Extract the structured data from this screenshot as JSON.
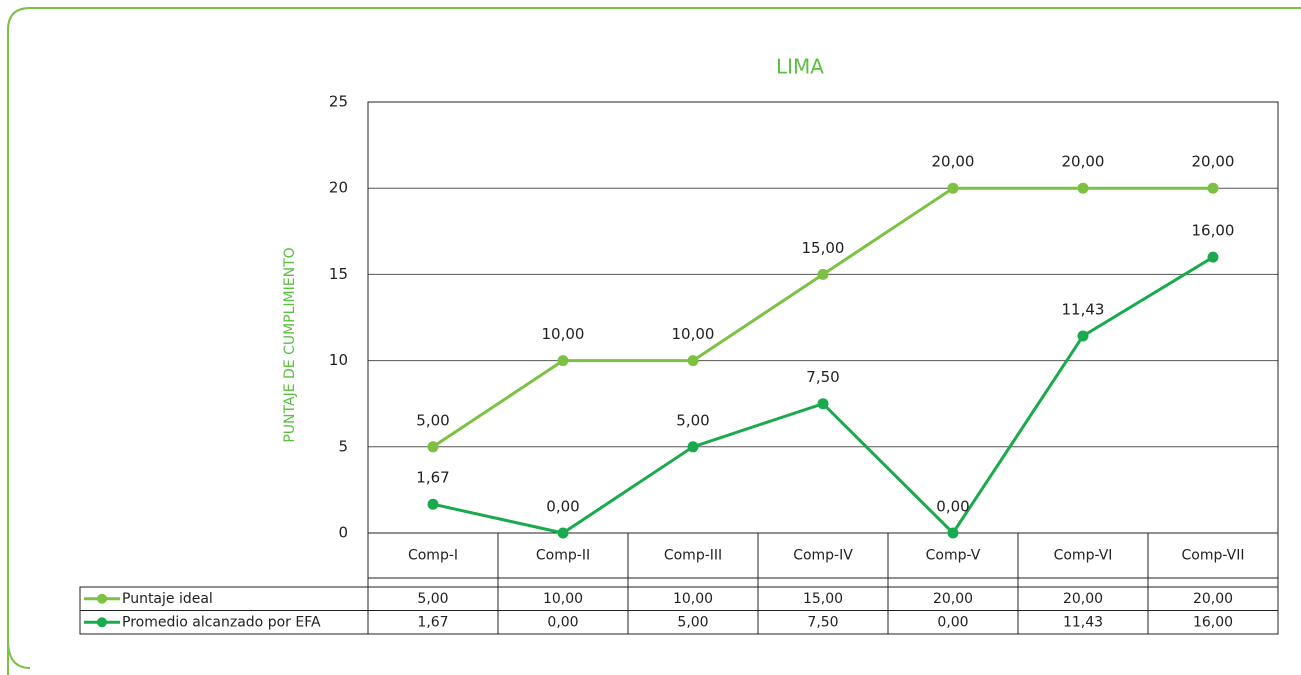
{
  "chart_data": {
    "type": "line",
    "title": "LIMA",
    "y_label": "PUNTAJE DE CUMPLIMIENTO",
    "categories": [
      "Comp-I",
      "Comp-II",
      "Comp-III",
      "Comp-IV",
      "Comp-V",
      "Comp-VI",
      "Comp-VII"
    ],
    "series": [
      {
        "name": "Puntaje ideal",
        "color": "#7dc142",
        "values": [
          5,
          10,
          10,
          15,
          20,
          20,
          20
        ],
        "value_labels": [
          "5,00",
          "10,00",
          "10,00",
          "15,00",
          "20,00",
          "20,00",
          "20,00"
        ]
      },
      {
        "name": "Promedio alcanzado por EFA",
        "color": "#1aaa4e",
        "values": [
          1.67,
          0,
          5,
          7.5,
          0,
          11.43,
          16
        ],
        "value_labels": [
          "1,67",
          "0,00",
          "5,00",
          "7,50",
          "0,00",
          "11,43",
          "16,00"
        ]
      }
    ],
    "ylim": [
      0,
      25
    ],
    "yticks": [
      0,
      5,
      10,
      15,
      20,
      25
    ],
    "grid": true
  }
}
